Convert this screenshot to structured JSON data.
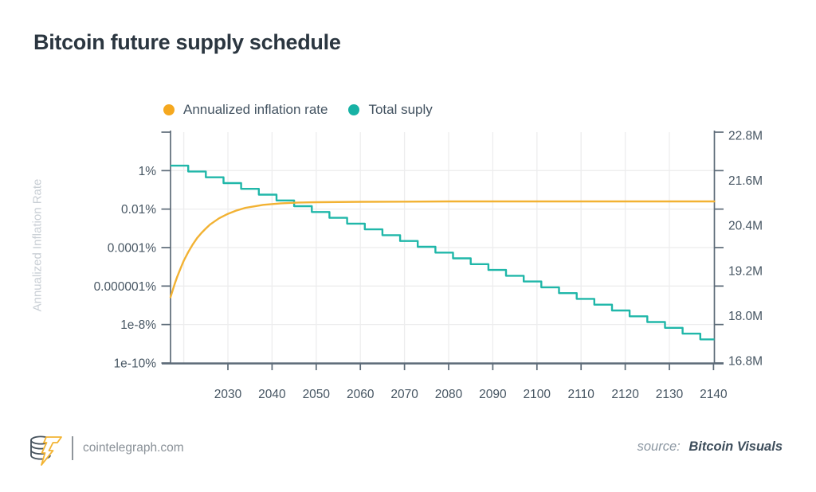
{
  "title": "Bitcoin future supply schedule",
  "legend": {
    "items": [
      {
        "label": "Annualized inflation rate",
        "dot_color": "#F5A81F"
      },
      {
        "label": "Total suply",
        "dot_color": "#17B2A5"
      }
    ]
  },
  "footer": {
    "logo_name": "cointelegraph-coin-bolt-logo",
    "site": "cointelegraph.com",
    "source_prefix": "source:",
    "source_name": "Bitcoin Visuals"
  },
  "colors": {
    "background": "#FFFFFF",
    "title_text": "#2B3640",
    "legend_text": "#425260",
    "tick_text": "#475663",
    "axis_title_text": "#C8CED4",
    "axis": "#5D6B78",
    "grid": "#EDEDEE",
    "teal_line": "#20B7A9",
    "yellow_line": "#F2B233",
    "footer_site_text": "#8A9198",
    "footer_divider": "#8F959B",
    "source_prefix_text": "#8A96A1",
    "source_name_text": "#3D4D5B",
    "logo_slate": "#46525D",
    "logo_yellow": "#F3B433"
  },
  "chart_data": {
    "type": "line",
    "title": "Bitcoin future supply schedule",
    "x_axis": {
      "range": [
        2017,
        2140.2
      ],
      "tick_years": [
        2030,
        2040,
        2050,
        2060,
        2070,
        2080,
        2090,
        2100,
        2110,
        2120,
        2130,
        2140
      ],
      "grid_years": [
        2020,
        2030,
        2040,
        2050,
        2060,
        2070,
        2080,
        2090,
        2100,
        2110,
        2120,
        2130
      ]
    },
    "left_axis": {
      "title": "Annualized Inflation Rate",
      "scale": "log",
      "unit": "%",
      "ticks": [
        {
          "label": "1%",
          "value": 1
        },
        {
          "label": "0.01%",
          "value": 0.01
        },
        {
          "label": "0.0001%",
          "value": 0.0001
        },
        {
          "label": "0.000001%",
          "value": 1e-06
        },
        {
          "label": "1e-8%",
          "value": 1e-08
        },
        {
          "label": "1e-10%",
          "value": 1e-10
        }
      ]
    },
    "right_axis": {
      "scale": "linear",
      "unit": "million BTC",
      "ticks": [
        {
          "label": "22.8M",
          "value": 22.8
        },
        {
          "label": "21.6M",
          "value": 21.6
        },
        {
          "label": "20.4M",
          "value": 20.4
        },
        {
          "label": "19.2M",
          "value": 19.2
        },
        {
          "label": "18.0M",
          "value": 18.0
        },
        {
          "label": "16.8M",
          "value": 16.8
        }
      ]
    },
    "series": [
      {
        "name": "Annualized inflation rate",
        "axis": "left",
        "style": "step",
        "color": "#20B7A9",
        "start_year": 2017,
        "first_step_year": 2021,
        "step_interval_years": 4,
        "tread_rates_pct": [
          1.8,
          0.9,
          0.45,
          0.225,
          0.113,
          0.0563,
          0.0281,
          0.0141,
          0.00703,
          0.00352,
          0.00176,
          0.000879,
          0.000439,
          0.00022,
          0.00011,
          5.49e-05,
          2.75e-05,
          1.37e-05,
          6.87e-06,
          3.43e-06,
          1.72e-06,
          8.58e-07,
          4.29e-07,
          2.15e-07,
          1.07e-07,
          5.36e-08,
          2.68e-08,
          1.34e-08,
          6.71e-09,
          3.35e-09,
          1.68e-09
        ]
      },
      {
        "name": "Total suply",
        "axis": "right",
        "style": "smooth",
        "color": "#F2B233",
        "points": [
          [
            2017,
            18.49
          ],
          [
            2017.5,
            18.68
          ],
          [
            2018,
            18.86
          ],
          [
            2018.5,
            19.03
          ],
          [
            2019,
            19.18
          ],
          [
            2019.5,
            19.32
          ],
          [
            2020,
            19.46
          ],
          [
            2021,
            19.69
          ],
          [
            2022,
            19.89
          ],
          [
            2023,
            20.06
          ],
          [
            2024,
            20.2
          ],
          [
            2025,
            20.32
          ],
          [
            2026,
            20.43
          ],
          [
            2028,
            20.59
          ],
          [
            2030,
            20.71
          ],
          [
            2032,
            20.8
          ],
          [
            2034,
            20.87
          ],
          [
            2036,
            20.91
          ],
          [
            2038,
            20.95
          ],
          [
            2042,
            20.99
          ],
          [
            2046,
            21.01
          ],
          [
            2050,
            21.02
          ],
          [
            2060,
            21.03
          ],
          [
            2070,
            21.035
          ],
          [
            2080,
            21.04
          ],
          [
            2100,
            21.04
          ],
          [
            2120,
            21.04
          ],
          [
            2140.2,
            21.04
          ]
        ]
      }
    ],
    "note": "In the source image the legend dot colors are swapped relative to the plotted lines: the descending halving staircase (inflation rate, left log axis) is drawn teal, while the saturating 21M supply curve (right axis) is drawn yellow."
  }
}
